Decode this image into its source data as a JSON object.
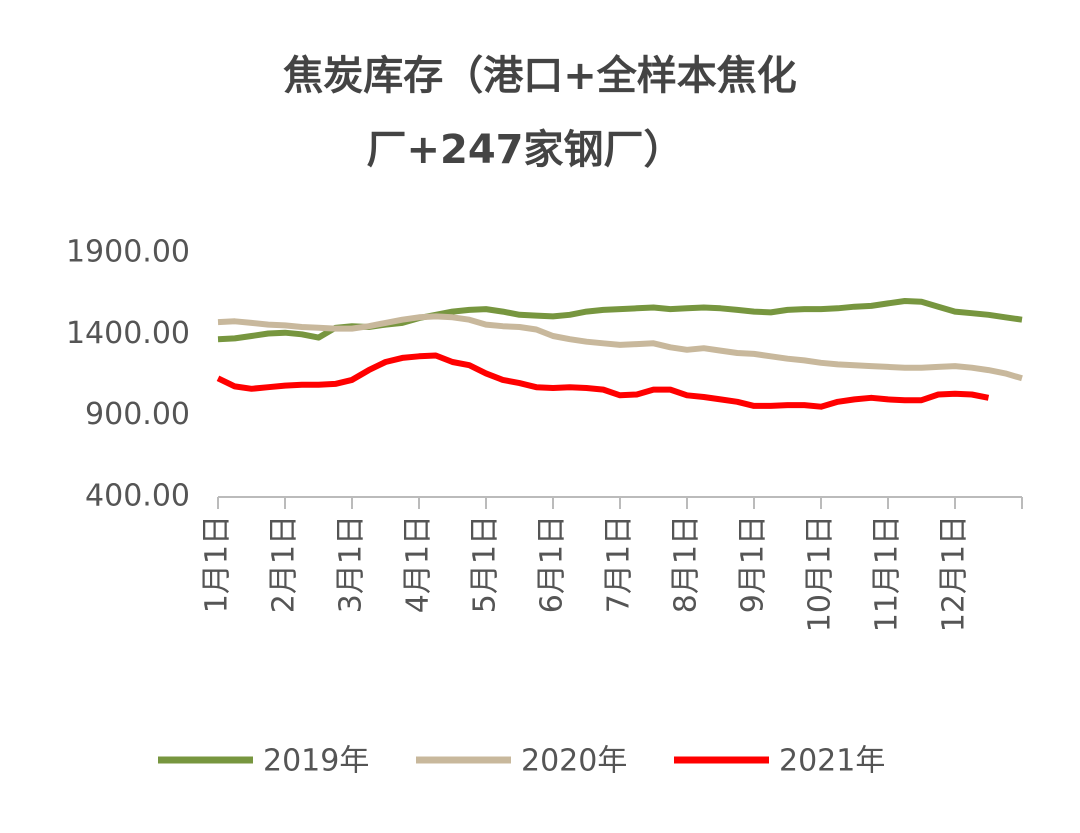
{
  "chart_data": {
    "type": "line",
    "title": [
      "焦炭库存（港口+全样本焦化",
      "厂+247家钢厂）"
    ],
    "categories": [
      "1月1日",
      null,
      null,
      null,
      "2月1日",
      null,
      null,
      null,
      "3月1日",
      null,
      null,
      null,
      "4月1日",
      null,
      null,
      null,
      "5月1日",
      null,
      null,
      null,
      "6月1日",
      null,
      null,
      null,
      "7月1日",
      null,
      null,
      null,
      "8月1日",
      null,
      null,
      null,
      "9月1日",
      null,
      null,
      null,
      "10月1日",
      null,
      null,
      null,
      "11月1日",
      null,
      null,
      null,
      "12月1日",
      null,
      null,
      null,
      null
    ],
    "series": [
      {
        "name": "2019年",
        "color": "#77963f",
        "values": [
          1370,
          1375,
          1390,
          1405,
          1410,
          1400,
          1380,
          1440,
          1450,
          1445,
          1460,
          1470,
          1500,
          1520,
          1540,
          1550,
          1555,
          1540,
          1520,
          1515,
          1510,
          1520,
          1540,
          1550,
          1555,
          1560,
          1565,
          1555,
          1560,
          1565,
          1560,
          1550,
          1540,
          1535,
          1550,
          1555,
          1555,
          1560,
          1570,
          1575,
          1590,
          1605,
          1600,
          1570,
          1540,
          1530,
          1520,
          1505,
          1490
        ]
      },
      {
        "name": "2020年",
        "color": "#c8b89c",
        "values": [
          1475,
          1480,
          1470,
          1460,
          1455,
          1445,
          1440,
          1435,
          1435,
          1450,
          1470,
          1490,
          1505,
          1510,
          1505,
          1490,
          1460,
          1450,
          1445,
          1430,
          1390,
          1370,
          1355,
          1345,
          1335,
          1340,
          1345,
          1320,
          1305,
          1315,
          1300,
          1285,
          1280,
          1265,
          1250,
          1240,
          1225,
          1215,
          1210,
          1205,
          1200,
          1195,
          1195,
          1200,
          1205,
          1195,
          1180,
          1160,
          1130
        ]
      },
      {
        "name": "2021年",
        "color": "#ff0000",
        "values": [
          1130,
          1080,
          1065,
          1075,
          1085,
          1090,
          1090,
          1095,
          1120,
          1180,
          1230,
          1255,
          1265,
          1270,
          1230,
          1210,
          1160,
          1120,
          1100,
          1075,
          1070,
          1075,
          1070,
          1060,
          1025,
          1030,
          1060,
          1060,
          1025,
          1015,
          1000,
          985,
          960,
          960,
          965,
          965,
          955,
          985,
          1000,
          1010,
          1000,
          995,
          995,
          1030,
          1035,
          1030,
          1010,
          null,
          null
        ]
      }
    ],
    "ylim": [
      400,
      1900
    ],
    "yticks": [
      {
        "value": 400,
        "label": "400.00"
      },
      {
        "value": 900,
        "label": "900.00"
      },
      {
        "value": 1400,
        "label": "1400.00"
      },
      {
        "value": 1900,
        "label": "1900.00"
      }
    ],
    "grid": false,
    "legend": "bottom"
  }
}
